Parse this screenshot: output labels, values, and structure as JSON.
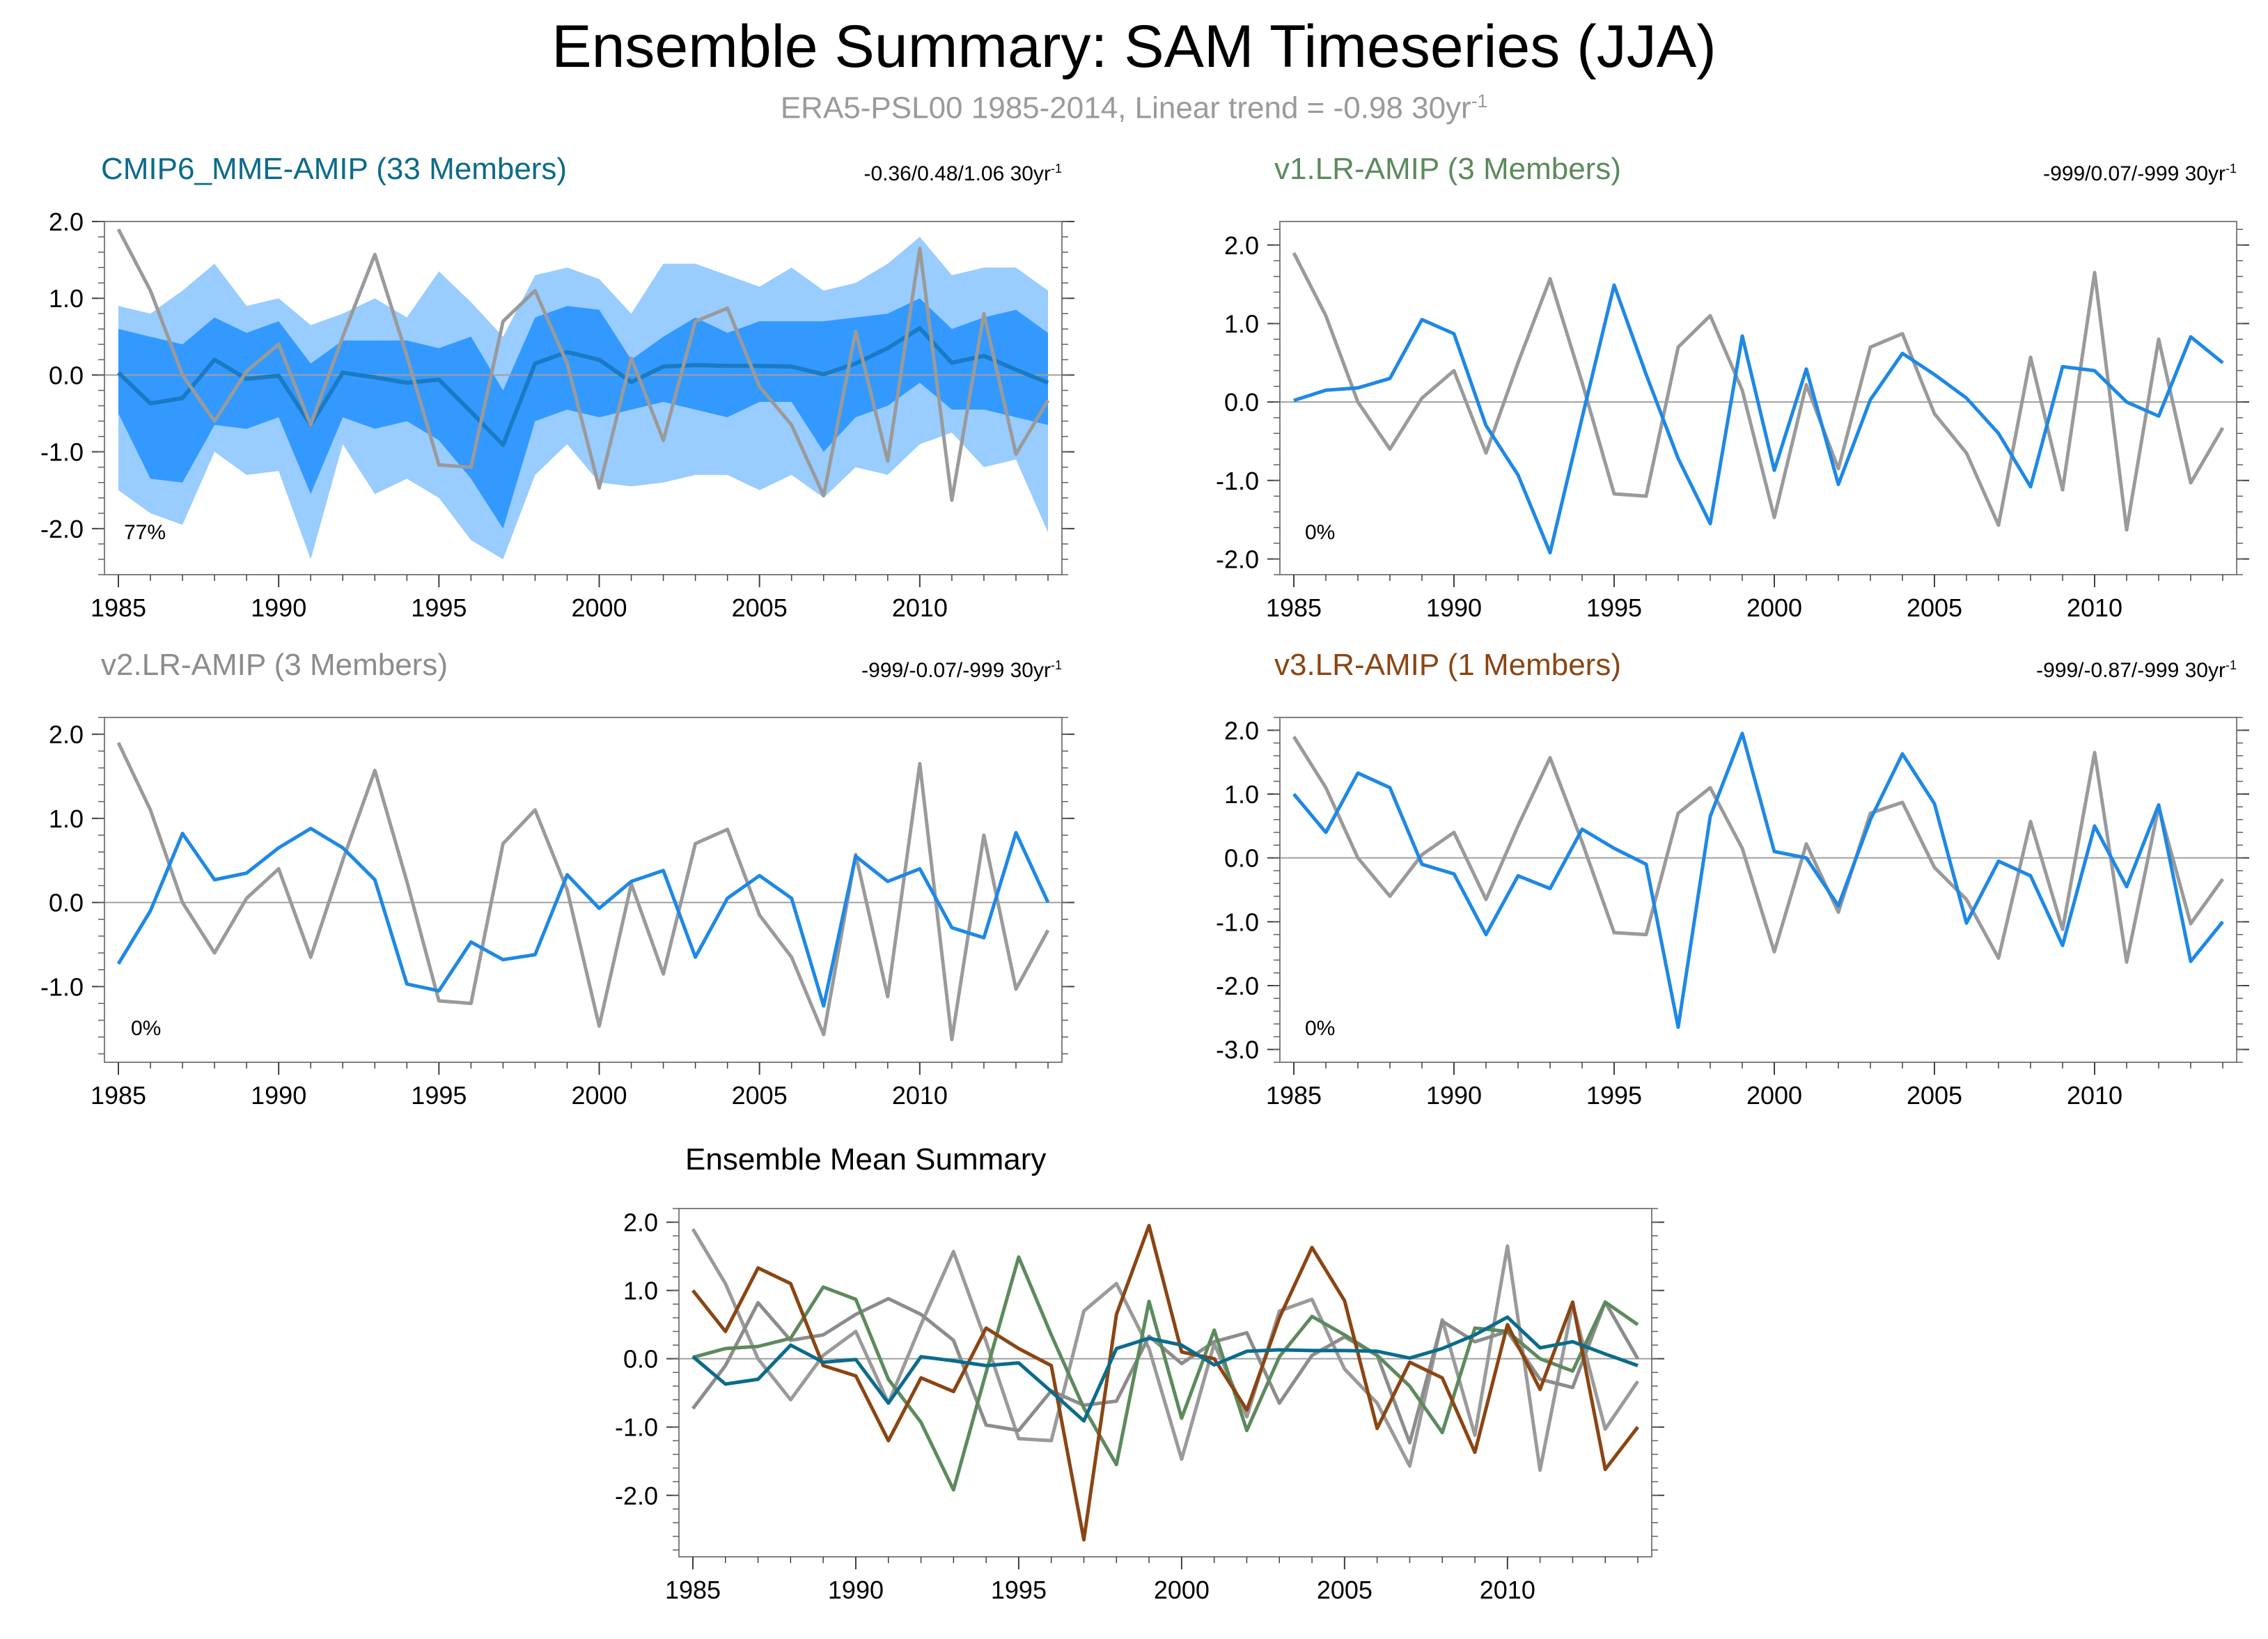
{
  "title": "Ensemble Summary: SAM Timeseries (JJA)",
  "subtitle": {
    "prefix": "ERA5-PSL00 1985-2014, Linear trend = -0.98 30yr",
    "exp": "-1"
  },
  "colors": {
    "obs": "#9a9a9a",
    "model": "#1e88e5",
    "band_outer": "#99ccff",
    "band_inner": "#3399ff",
    "mme_mean": "#1a7bc4",
    "cmip6": "#0b6b8c",
    "v1": "#5c8a5c",
    "v2": "#8c8c8c",
    "v3": "#8b4513",
    "zero_line": "#a0a0a0",
    "frame": "#808080"
  },
  "chart_data": [
    {
      "type": "line",
      "id": "cmip6",
      "title": "CMIP6_MME-AMIP (33 Members)",
      "stat": "-0.36/0.48/1.06 30yr",
      "stat_exp": "-1",
      "pct": "77%",
      "x": [
        1985,
        1986,
        1987,
        1988,
        1989,
        1990,
        1991,
        1992,
        1993,
        1994,
        1995,
        1996,
        1997,
        1998,
        1999,
        2000,
        2001,
        2002,
        2003,
        2004,
        2005,
        2006,
        2007,
        2008,
        2009,
        2010,
        2011,
        2012,
        2013,
        2014
      ],
      "xticks": [
        1985,
        1990,
        1995,
        2000,
        2005,
        2010
      ],
      "ylim": [
        -2.6,
        2.0
      ],
      "yticks": [
        -2.0,
        -1.0,
        0.0,
        1.0,
        2.0
      ],
      "ytick_labels": [
        "-2.0",
        "-1.0",
        "0.0",
        "1.0",
        "2.0"
      ],
      "band_outer": {
        "upper": [
          0.9,
          0.8,
          1.1,
          1.45,
          0.9,
          1.0,
          0.65,
          0.8,
          1.0,
          0.75,
          1.35,
          0.95,
          0.5,
          1.3,
          1.4,
          1.25,
          0.8,
          1.45,
          1.45,
          1.3,
          1.15,
          1.4,
          1.1,
          1.2,
          1.45,
          1.8,
          1.3,
          1.4,
          1.4,
          1.1
        ],
        "lower": [
          -1.5,
          -1.8,
          -1.95,
          -1.0,
          -1.3,
          -1.25,
          -2.4,
          -0.9,
          -1.55,
          -1.35,
          -1.6,
          -2.15,
          -2.4,
          -1.3,
          -0.9,
          -1.4,
          -1.45,
          -1.4,
          -1.3,
          -1.3,
          -1.5,
          -1.3,
          -1.6,
          -1.2,
          -1.3,
          -0.9,
          -0.75,
          -1.2,
          -1.1,
          -2.05
        ]
      },
      "band_inner": {
        "upper": [
          0.6,
          0.5,
          0.4,
          0.75,
          0.55,
          0.7,
          0.15,
          0.45,
          0.45,
          0.45,
          0.35,
          0.5,
          -0.2,
          0.75,
          0.9,
          0.85,
          0.2,
          0.5,
          0.75,
          0.55,
          0.7,
          0.7,
          0.7,
          0.75,
          0.8,
          1.0,
          0.6,
          0.75,
          0.85,
          0.55
        ],
        "lower": [
          -0.5,
          -1.35,
          -1.4,
          -0.65,
          -0.7,
          -0.55,
          -1.55,
          -0.55,
          -0.7,
          -0.6,
          -0.85,
          -1.35,
          -2.0,
          -0.6,
          -0.45,
          -0.55,
          -0.45,
          -0.35,
          -0.45,
          -0.55,
          -0.35,
          -0.35,
          -1.0,
          -0.55,
          -0.4,
          -0.1,
          -0.45,
          -0.45,
          -0.55,
          -0.65
        ]
      },
      "series": [
        {
          "role": "model",
          "color_key": "mme_mean",
          "width": 6,
          "values": [
            0.03,
            -0.37,
            -0.3,
            0.2,
            -0.05,
            -0.01,
            -0.65,
            0.03,
            -0.03,
            -0.1,
            -0.06,
            -0.48,
            -0.91,
            0.15,
            0.3,
            0.2,
            -0.09,
            0.11,
            0.13,
            0.12,
            0.12,
            0.11,
            0.01,
            0.15,
            0.35,
            0.61,
            0.16,
            0.25,
            0.07,
            -0.1
          ]
        },
        {
          "role": "obs",
          "color_key": "obs",
          "width": 5,
          "values": [
            1.9,
            1.1,
            0.0,
            -0.6,
            0.05,
            0.4,
            -0.65,
            0.5,
            1.57,
            0.25,
            -1.17,
            -1.2,
            0.7,
            1.1,
            0.15,
            -1.47,
            0.22,
            -0.85,
            0.7,
            0.87,
            -0.15,
            -0.65,
            -1.57,
            0.57,
            -1.12,
            1.65,
            -1.63,
            0.8,
            -1.03,
            -0.33
          ]
        }
      ]
    },
    {
      "type": "line",
      "id": "v1",
      "title": "v1.LR-AMIP (3 Members)",
      "stat": "-999/0.07/-999 30yr",
      "stat_exp": "-1",
      "pct": "0%",
      "x": [
        1985,
        1986,
        1987,
        1988,
        1989,
        1990,
        1991,
        1992,
        1993,
        1994,
        1995,
        1996,
        1997,
        1998,
        1999,
        2000,
        2001,
        2002,
        2003,
        2004,
        2005,
        2006,
        2007,
        2008,
        2009,
        2010,
        2011,
        2012,
        2013,
        2014
      ],
      "xticks": [
        1985,
        1990,
        1995,
        2000,
        2005,
        2010
      ],
      "ylim": [
        -2.2,
        2.3
      ],
      "yticks": [
        -2.0,
        -1.0,
        0.0,
        1.0,
        2.0
      ],
      "ytick_labels": [
        "-2.0",
        "-1.0",
        "0.0",
        "1.0",
        "2.0"
      ],
      "series": [
        {
          "role": "obs",
          "color_key": "obs",
          "width": 5,
          "values": [
            1.9,
            1.1,
            0.0,
            -0.6,
            0.05,
            0.4,
            -0.65,
            0.5,
            1.57,
            0.25,
            -1.17,
            -1.2,
            0.7,
            1.1,
            0.15,
            -1.47,
            0.22,
            -0.85,
            0.7,
            0.87,
            -0.15,
            -0.65,
            -1.57,
            0.57,
            -1.12,
            1.65,
            -1.63,
            0.8,
            -1.03,
            -0.33
          ]
        },
        {
          "role": "model",
          "color_key": "model",
          "width": 5,
          "values": [
            0.02,
            0.15,
            0.18,
            0.3,
            1.05,
            0.87,
            -0.3,
            -0.93,
            -1.92,
            -0.2,
            1.49,
            0.35,
            -0.72,
            -1.55,
            0.84,
            -0.87,
            0.42,
            -1.05,
            0.03,
            0.62,
            0.35,
            0.05,
            -0.4,
            -1.08,
            0.45,
            0.4,
            0.0,
            -0.18,
            0.83,
            0.5
          ]
        }
      ]
    },
    {
      "type": "line",
      "id": "v2",
      "title": "v2.LR-AMIP (3 Members)",
      "stat": "-999/-0.07/-999 30yr",
      "stat_exp": "-1",
      "pct": "0%",
      "x": [
        1985,
        1986,
        1987,
        1988,
        1989,
        1990,
        1991,
        1992,
        1993,
        1994,
        1995,
        1996,
        1997,
        1998,
        1999,
        2000,
        2001,
        2002,
        2003,
        2004,
        2005,
        2006,
        2007,
        2008,
        2009,
        2010,
        2011,
        2012,
        2013,
        2014
      ],
      "xticks": [
        1985,
        1990,
        1995,
        2000,
        2005,
        2010
      ],
      "ylim": [
        -1.9,
        2.2
      ],
      "yticks": [
        -1.0,
        0.0,
        1.0,
        2.0
      ],
      "ytick_labels": [
        "-1.0",
        "0.0",
        "1.0",
        "2.0"
      ],
      "series": [
        {
          "role": "obs",
          "color_key": "obs",
          "width": 5,
          "values": [
            1.9,
            1.1,
            0.0,
            -0.6,
            0.05,
            0.4,
            -0.65,
            0.5,
            1.57,
            0.25,
            -1.17,
            -1.2,
            0.7,
            1.1,
            0.15,
            -1.47,
            0.22,
            -0.85,
            0.7,
            0.87,
            -0.15,
            -0.65,
            -1.57,
            0.57,
            -1.12,
            1.65,
            -1.63,
            0.8,
            -1.03,
            -0.33
          ]
        },
        {
          "role": "model",
          "color_key": "model",
          "width": 5,
          "values": [
            -0.73,
            -0.1,
            0.82,
            0.27,
            0.35,
            0.65,
            0.88,
            0.65,
            0.27,
            -0.97,
            -1.05,
            -0.47,
            -0.68,
            -0.62,
            0.33,
            -0.07,
            0.25,
            0.38,
            -0.65,
            0.05,
            0.32,
            0.05,
            -1.23,
            0.55,
            0.25,
            0.4,
            -0.3,
            -0.42,
            0.83,
            0.0
          ]
        }
      ]
    },
    {
      "type": "line",
      "id": "v3",
      "title": "v3.LR-AMIP (1 Members)",
      "stat": "-999/-0.87/-999 30yr",
      "stat_exp": "-1",
      "pct": "0%",
      "x": [
        1985,
        1986,
        1987,
        1988,
        1989,
        1990,
        1991,
        1992,
        1993,
        1994,
        1995,
        1996,
        1997,
        1998,
        1999,
        2000,
        2001,
        2002,
        2003,
        2004,
        2005,
        2006,
        2007,
        2008,
        2009,
        2010,
        2011,
        2012,
        2013,
        2014
      ],
      "xticks": [
        1985,
        1990,
        1995,
        2000,
        2005,
        2010
      ],
      "ylim": [
        -3.2,
        2.2
      ],
      "yticks": [
        -3.0,
        -2.0,
        -1.0,
        0.0,
        1.0,
        2.0
      ],
      "ytick_labels": [
        "-3.0",
        "-2.0",
        "-1.0",
        "0.0",
        "1.0",
        "2.0"
      ],
      "series": [
        {
          "role": "obs",
          "color_key": "obs",
          "width": 5,
          "values": [
            1.9,
            1.1,
            0.0,
            -0.6,
            0.05,
            0.4,
            -0.65,
            0.5,
            1.57,
            0.25,
            -1.17,
            -1.2,
            0.7,
            1.1,
            0.15,
            -1.47,
            0.22,
            -0.85,
            0.7,
            0.87,
            -0.15,
            -0.65,
            -1.57,
            0.57,
            -1.12,
            1.65,
            -1.63,
            0.8,
            -1.03,
            -0.33
          ]
        },
        {
          "role": "model",
          "color_key": "model",
          "width": 5,
          "values": [
            1.0,
            0.4,
            1.33,
            1.1,
            -0.1,
            -0.25,
            -1.2,
            -0.28,
            -0.48,
            0.45,
            0.15,
            -0.1,
            -2.65,
            0.65,
            1.95,
            0.1,
            0.0,
            -0.75,
            0.6,
            1.63,
            0.85,
            -1.02,
            -0.05,
            -0.28,
            -1.37,
            0.5,
            -0.45,
            0.83,
            -1.62,
            -1.0
          ]
        }
      ]
    },
    {
      "type": "line",
      "id": "summary",
      "title": "Ensemble Mean Summary",
      "x": [
        1985,
        1986,
        1987,
        1988,
        1989,
        1990,
        1991,
        1992,
        1993,
        1994,
        1995,
        1996,
        1997,
        1998,
        1999,
        2000,
        2001,
        2002,
        2003,
        2004,
        2005,
        2006,
        2007,
        2008,
        2009,
        2010,
        2011,
        2012,
        2013,
        2014
      ],
      "xticks": [
        1985,
        1990,
        1995,
        2000,
        2005,
        2010
      ],
      "ylim": [
        -2.9,
        2.2
      ],
      "yticks": [
        -2.0,
        -1.0,
        0.0,
        1.0,
        2.0
      ],
      "ytick_labels": [
        "-2.0",
        "-1.0",
        "0.0",
        "1.0",
        "2.0"
      ],
      "series": [
        {
          "role": "obs",
          "color_key": "obs",
          "width": 5,
          "values": [
            1.9,
            1.1,
            0.0,
            -0.6,
            0.05,
            0.4,
            -0.65,
            0.5,
            1.57,
            0.25,
            -1.17,
            -1.2,
            0.7,
            1.1,
            0.15,
            -1.47,
            0.22,
            -0.85,
            0.7,
            0.87,
            -0.15,
            -0.65,
            -1.57,
            0.57,
            -1.12,
            1.65,
            -1.63,
            0.8,
            -1.03,
            -0.33
          ]
        },
        {
          "role": "v2",
          "color_key": "v2",
          "width": 5,
          "values": [
            -0.73,
            -0.1,
            0.82,
            0.27,
            0.35,
            0.65,
            0.88,
            0.65,
            0.27,
            -0.97,
            -1.05,
            -0.47,
            -0.68,
            -0.62,
            0.33,
            -0.07,
            0.25,
            0.38,
            -0.65,
            0.05,
            0.32,
            0.05,
            -1.23,
            0.55,
            0.25,
            0.4,
            -0.3,
            -0.42,
            0.83,
            0.0
          ]
        },
        {
          "role": "v1",
          "color_key": "v1",
          "width": 5,
          "values": [
            0.02,
            0.15,
            0.18,
            0.3,
            1.05,
            0.87,
            -0.3,
            -0.93,
            -1.92,
            -0.2,
            1.49,
            0.35,
            -0.72,
            -1.55,
            0.84,
            -0.87,
            0.42,
            -1.05,
            0.03,
            0.62,
            0.35,
            0.05,
            -0.4,
            -1.08,
            0.45,
            0.4,
            0.0,
            -0.18,
            0.83,
            0.5
          ]
        },
        {
          "role": "v3",
          "color_key": "v3",
          "width": 5,
          "values": [
            1.0,
            0.4,
            1.33,
            1.1,
            -0.1,
            -0.25,
            -1.2,
            -0.28,
            -0.48,
            0.45,
            0.15,
            -0.1,
            -2.65,
            0.65,
            1.95,
            0.1,
            0.0,
            -0.75,
            0.6,
            1.63,
            0.85,
            -1.02,
            -0.05,
            -0.28,
            -1.37,
            0.5,
            -0.45,
            0.83,
            -1.62,
            -1.0
          ]
        },
        {
          "role": "cmip6",
          "color_key": "cmip6",
          "width": 5,
          "values": [
            0.03,
            -0.37,
            -0.3,
            0.2,
            -0.05,
            -0.01,
            -0.65,
            0.03,
            -0.03,
            -0.1,
            -0.06,
            -0.48,
            -0.91,
            0.15,
            0.3,
            0.2,
            -0.09,
            0.11,
            0.13,
            0.12,
            0.12,
            0.11,
            0.01,
            0.15,
            0.35,
            0.61,
            0.16,
            0.25,
            0.07,
            -0.1
          ]
        }
      ]
    }
  ]
}
